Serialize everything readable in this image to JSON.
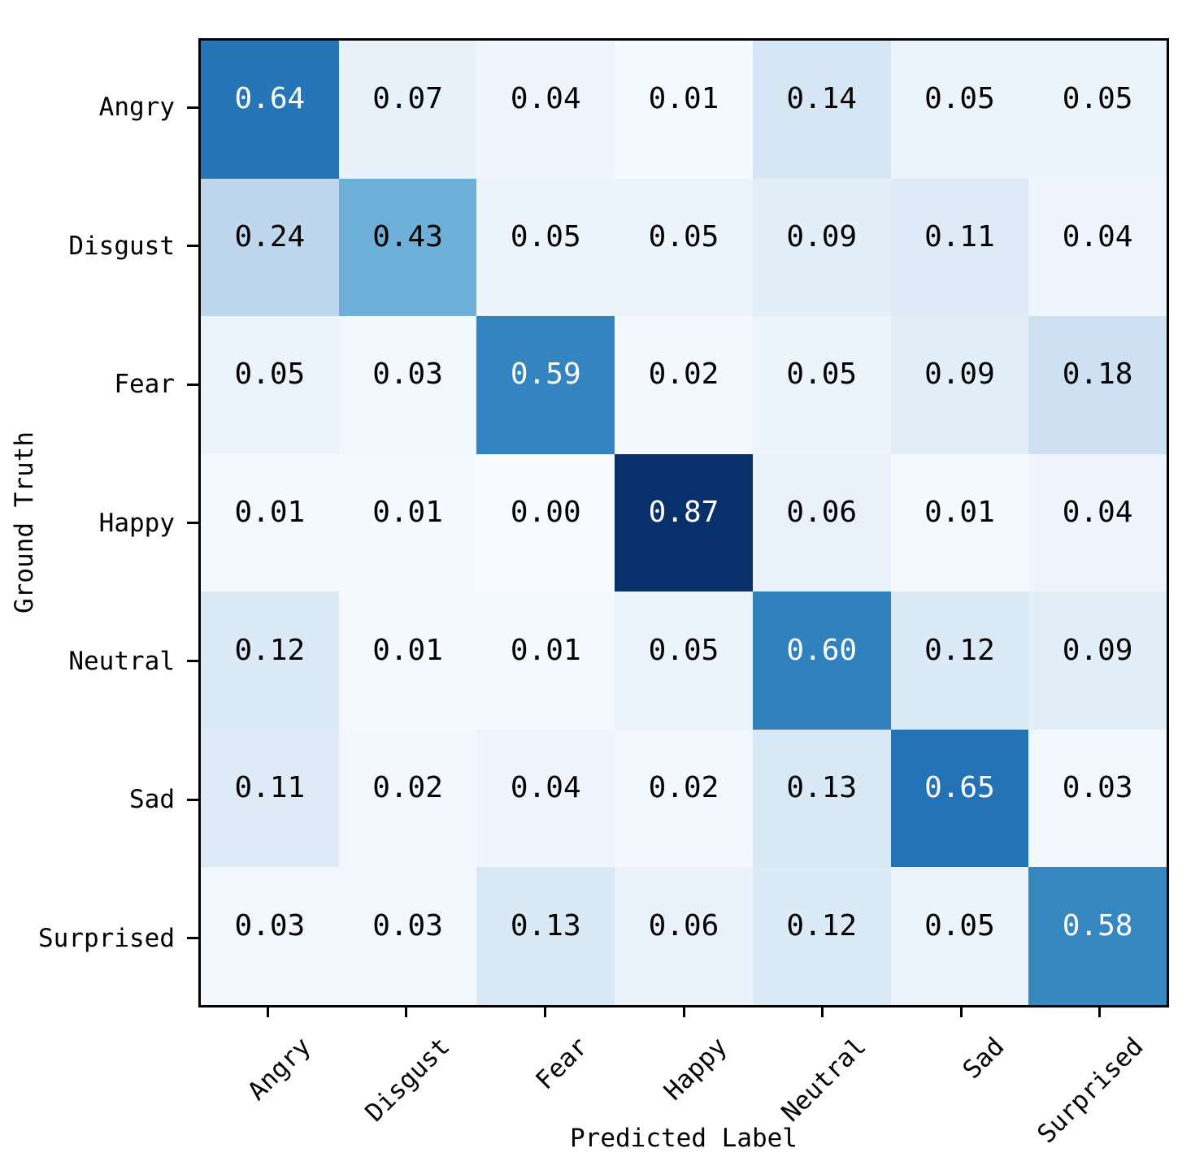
{
  "chart_data": {
    "type": "heatmap",
    "title": "",
    "xlabel": "Predicted Label",
    "ylabel": "Ground Truth",
    "x_categories": [
      "Angry",
      "Disgust",
      "Fear",
      "Happy",
      "Neutral",
      "Sad",
      "Surprised"
    ],
    "y_categories": [
      "Angry",
      "Disgust",
      "Fear",
      "Happy",
      "Neutral",
      "Sad",
      "Surprised"
    ],
    "rows": [
      [
        0.64,
        0.07,
        0.04,
        0.01,
        0.14,
        0.05,
        0.05
      ],
      [
        0.24,
        0.43,
        0.05,
        0.05,
        0.09,
        0.11,
        0.04
      ],
      [
        0.05,
        0.03,
        0.59,
        0.02,
        0.05,
        0.09,
        0.18
      ],
      [
        0.01,
        0.01,
        0.0,
        0.87,
        0.06,
        0.01,
        0.04
      ],
      [
        0.12,
        0.01,
        0.01,
        0.05,
        0.6,
        0.12,
        0.09
      ],
      [
        0.11,
        0.02,
        0.04,
        0.02,
        0.13,
        0.65,
        0.03
      ],
      [
        0.03,
        0.03,
        0.13,
        0.06,
        0.12,
        0.05,
        0.58
      ]
    ],
    "value_decimals": 2,
    "vmin": 0.0,
    "vmax": 0.87,
    "colormap": {
      "name": "Blues",
      "stops": [
        "#f7fbff",
        "#deebf7",
        "#c6dbef",
        "#9ecae1",
        "#6baed6",
        "#4292c6",
        "#2171b5",
        "#08519c",
        "#08306b"
      ]
    },
    "text_colors": {
      "dark": "#000000",
      "light": "#ffffff"
    },
    "text_color_rule": "light when value > vmax/2",
    "x_tick_rotation_deg": 45,
    "grid": false,
    "legend": false
  }
}
